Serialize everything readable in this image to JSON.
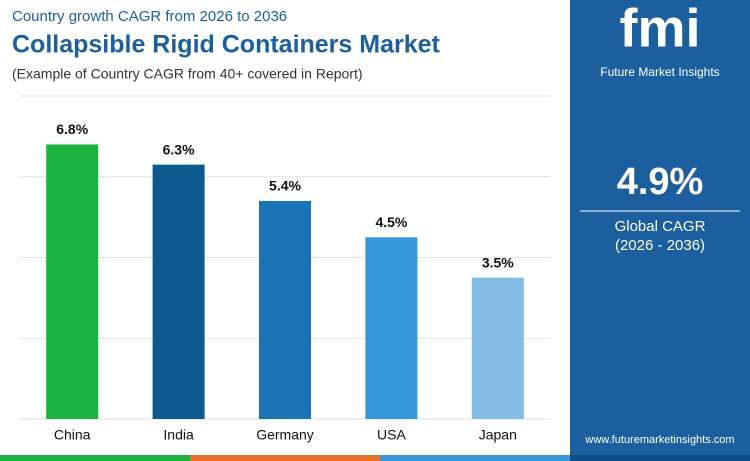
{
  "chart_data": {
    "type": "bar",
    "subtitle": "Country growth CAGR from 2026 to 2036",
    "title": "Collapsible Rigid Containers Market",
    "caption": "(Example of Country CAGR from 40+ covered in Report)",
    "categories": [
      "China",
      "India",
      "Germany",
      "USA",
      "Japan"
    ],
    "values": [
      6.8,
      6.3,
      5.4,
      4.5,
      3.5
    ],
    "value_labels": [
      "6.8%",
      "6.3%",
      "5.4%",
      "4.5%",
      "3.5%"
    ],
    "colors": [
      "#1db33f",
      "#0d5a8f",
      "#1b74b3",
      "#3596d9",
      "#82bde6"
    ],
    "ylim": [
      0,
      8
    ],
    "yticks": [
      0,
      2,
      4,
      6,
      8
    ],
    "grid": true
  },
  "sidebar": {
    "brand": "Future Market Insights",
    "stat": "4.9%",
    "stat_label": "Global CAGR",
    "stat_period": "(2026 - 2036)",
    "website": "www.futuremarketinsights.com"
  }
}
